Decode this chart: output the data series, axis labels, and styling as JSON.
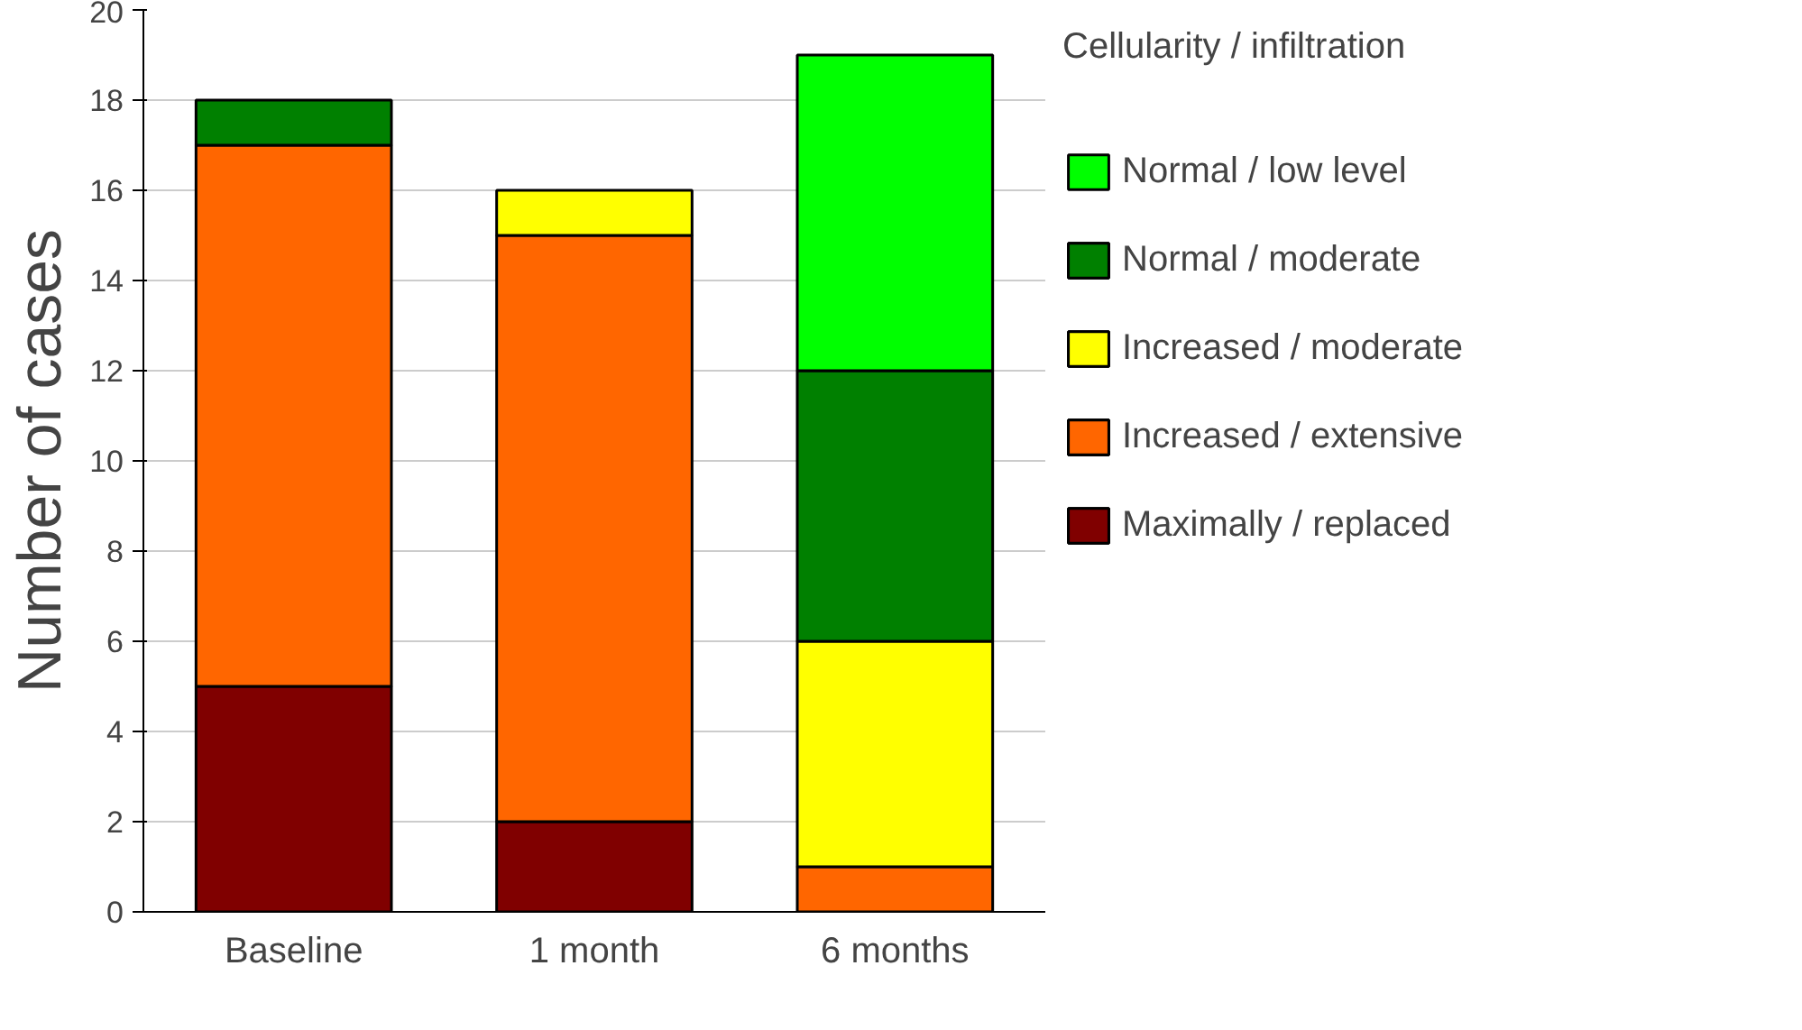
{
  "chart_data": {
    "type": "bar",
    "stacked": true,
    "ylabel": "Number of cases",
    "legend_title": "Cellularity / infiltration",
    "categories": [
      "Baseline",
      "1 month",
      "6 months"
    ],
    "series": [
      {
        "name": "Maximally / replaced",
        "color": "#800000",
        "values": [
          5,
          2,
          0
        ]
      },
      {
        "name": "Increased / extensive",
        "color": "#ff6600",
        "values": [
          12,
          13,
          1
        ]
      },
      {
        "name": "Increased / moderate",
        "color": "#ffff00",
        "values": [
          0,
          1,
          5
        ]
      },
      {
        "name": "Normal / moderate",
        "color": "#008000",
        "values": [
          1,
          0,
          6
        ]
      },
      {
        "name": "Normal / low level",
        "color": "#00ff00",
        "values": [
          0,
          0,
          7
        ]
      }
    ],
    "ylim": [
      0,
      20
    ],
    "yticks": [
      0,
      2,
      4,
      6,
      8,
      10,
      12,
      14,
      16,
      18,
      20
    ],
    "grid": "y",
    "legend": "right"
  }
}
